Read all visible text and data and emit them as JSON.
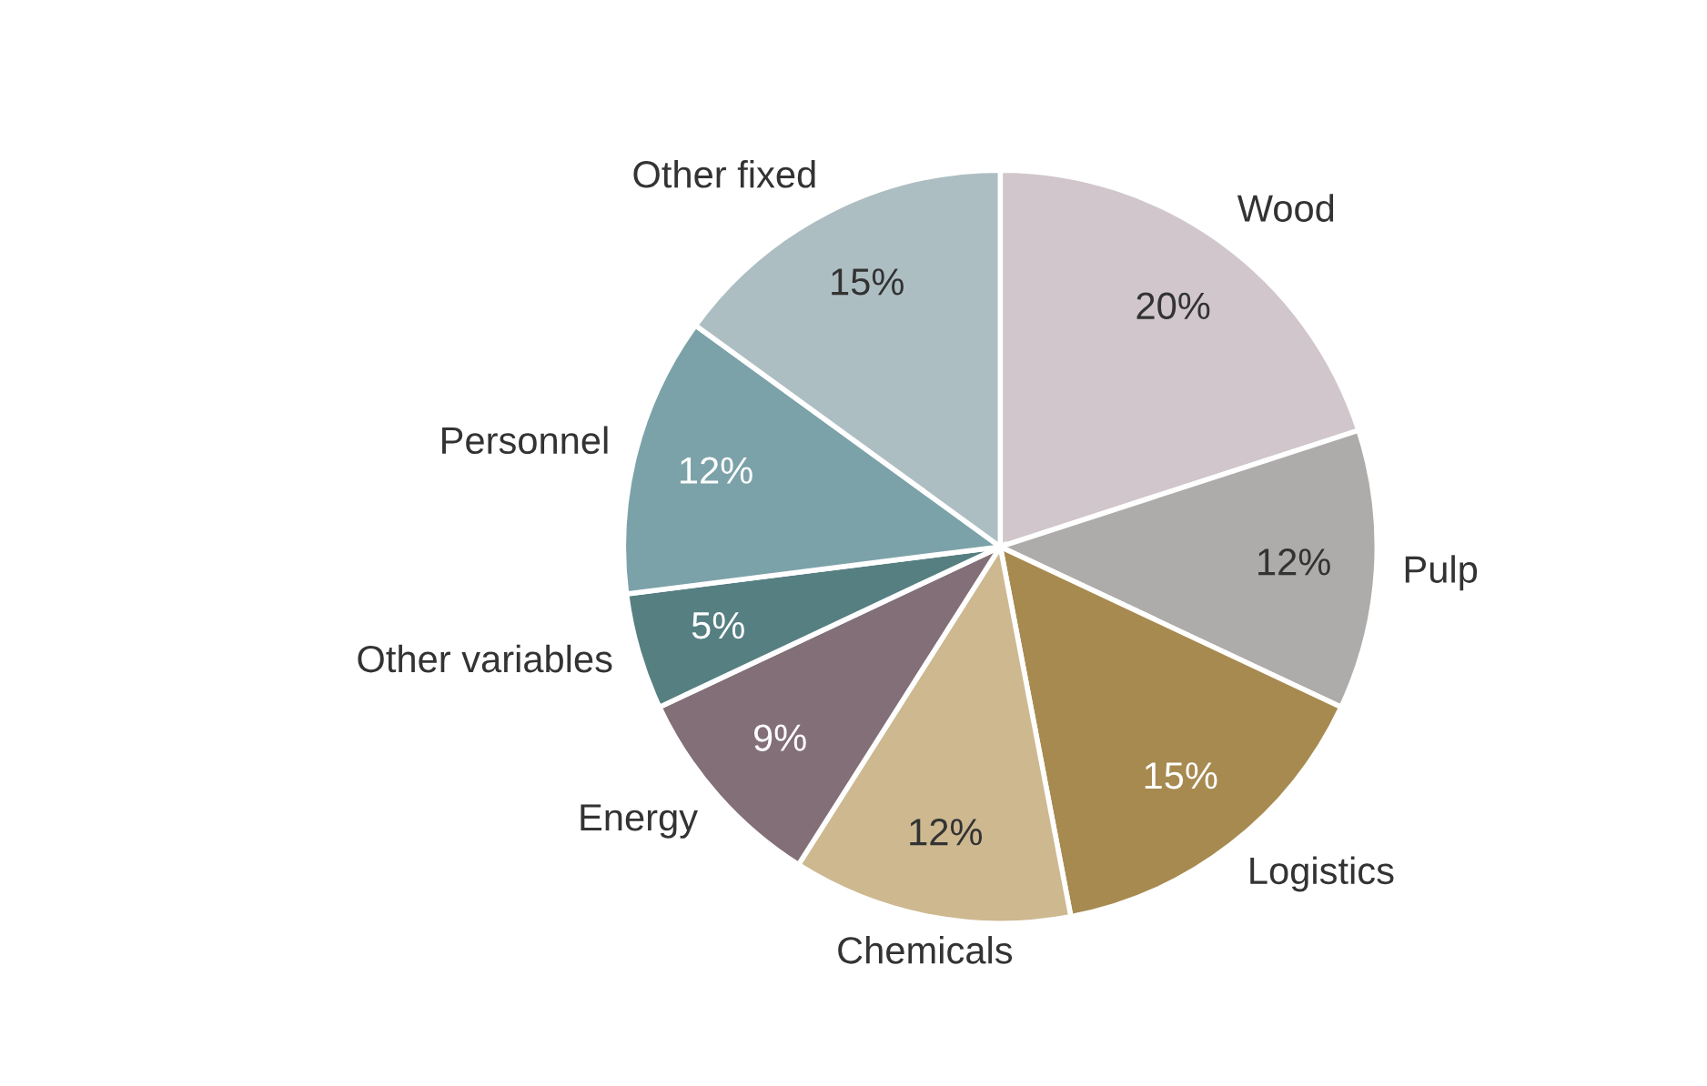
{
  "chart_data": {
    "type": "pie",
    "categories": [
      "Wood",
      "Pulp",
      "Logistics",
      "Chemicals",
      "Energy",
      "Other variables",
      "Personnel",
      "Other fixed"
    ],
    "values": [
      20,
      12,
      15,
      12,
      9,
      5,
      12,
      15
    ],
    "value_labels": [
      "20%",
      "12%",
      "15%",
      "12%",
      "9%",
      "5%",
      "12%",
      "15%"
    ],
    "colors": [
      "#d0c6cb",
      "#adacaa",
      "#a78a50",
      "#cdb890",
      "#836f78",
      "#567f82",
      "#7ca2a9",
      "#adbec2"
    ]
  }
}
